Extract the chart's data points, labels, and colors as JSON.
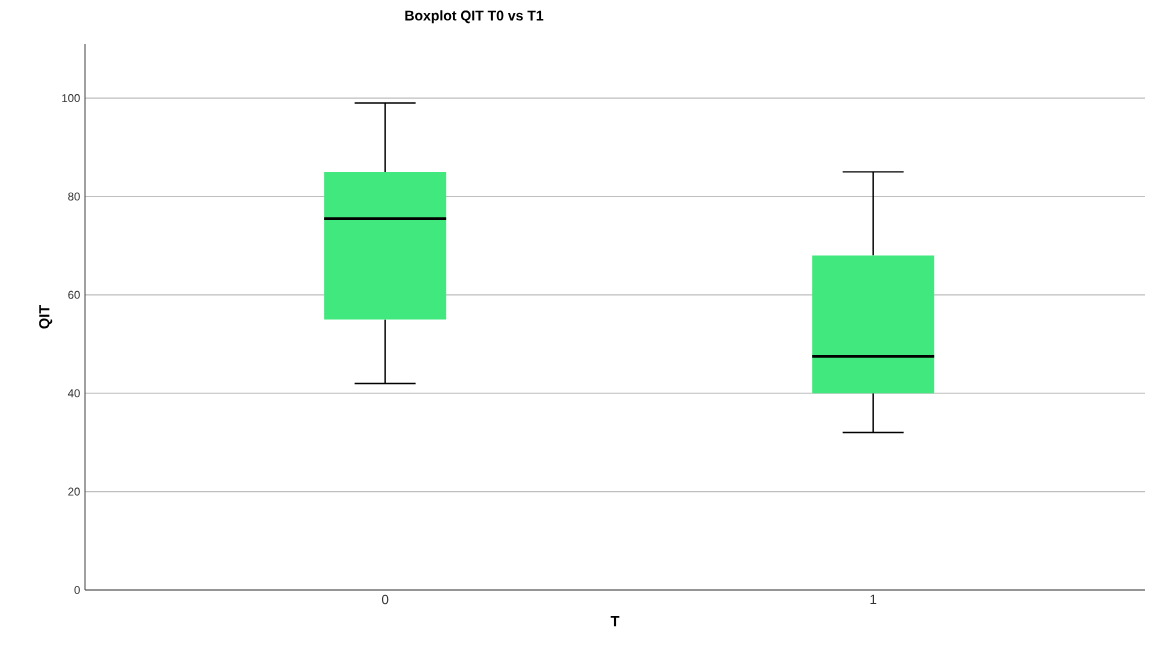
{
  "chart_data": {
    "type": "box",
    "title": "Boxplot QIT T0 vs T1",
    "xlabel": "T",
    "ylabel": "QIT",
    "categories": [
      "0",
      "1"
    ],
    "series": [
      {
        "color": "#40e87e",
        "boxes": [
          {
            "low": 42,
            "q1": 55,
            "median": 75.5,
            "q3": 85,
            "high": 99
          },
          {
            "low": 32,
            "q1": 40,
            "median": 47.5,
            "q3": 68,
            "high": 85
          }
        ]
      }
    ],
    "ylim": [
      0,
      111
    ],
    "yticks": [
      0,
      20,
      40,
      60,
      80,
      100
    ],
    "grid": "y"
  }
}
